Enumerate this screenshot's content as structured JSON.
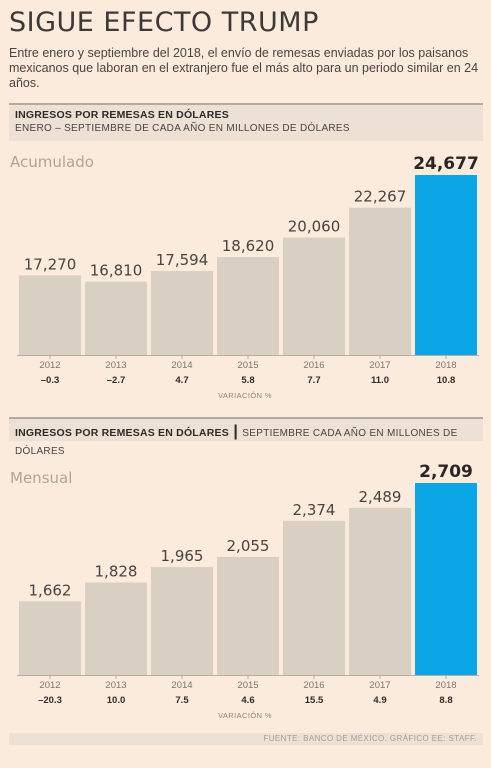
{
  "header": {
    "title": "SIGUE EFECTO TRUMP",
    "subtitle": "Entre enero y septiembre del 2018, el envío de remesas enviadas por los paisanos mexicanos que laboran en el extranjero fue el más alto para un periodo similar en 24 años."
  },
  "banner1": {
    "heading": "INGRESOS POR REMESAS EN DÓLARES",
    "subheading": "ENERO – SEPTIEMBRE DE CADA AÑO EN MILLONES DE DÓLARES"
  },
  "banner2": {
    "heading": "INGRESOS POR REMESAS EN DÓLARES",
    "separator": "|",
    "subheading": "SEPTIEMBRE CADA AÑO EN MILLONES DE DÓLARES"
  },
  "colors": {
    "bar": "#dacfc3",
    "highlight": "#0aa7e4",
    "background": "#faebdc"
  },
  "chart_data": [
    {
      "type": "bar",
      "label": "Acumulado",
      "categories": [
        "2012",
        "2013",
        "2014",
        "2015",
        "2016",
        "2017",
        "2018"
      ],
      "values": [
        17270,
        16810,
        17594,
        18620,
        20060,
        22267,
        24677
      ],
      "value_labels": [
        "17,270",
        "16,810",
        "17,594",
        "18,620",
        "20,060",
        "22,267",
        "24,677"
      ],
      "variation": [
        "–0.3",
        "–2.7",
        "4.7",
        "5.8",
        "7.7",
        "11.0",
        "10.8"
      ],
      "variation_label": "VARIACIÓN %",
      "highlight_index": 6,
      "ylim": [
        11400,
        24677
      ]
    },
    {
      "type": "bar",
      "label": "Mensual",
      "categories": [
        "2012",
        "2013",
        "2014",
        "2015",
        "2016",
        "2017",
        "2018"
      ],
      "values": [
        1662,
        1828,
        1965,
        2055,
        2374,
        2489,
        2709
      ],
      "value_labels": [
        "1,662",
        "1,828",
        "1,965",
        "2,055",
        "2,374",
        "2,489",
        "2,709"
      ],
      "variation": [
        "–20.3",
        "10.0",
        "7.5",
        "4.6",
        "15.5",
        "4.9",
        "8.8"
      ],
      "variation_label": "VARIACIÓN %",
      "highlight_index": 6,
      "ylim": [
        1010,
        2709
      ]
    }
  ],
  "footer": {
    "source": "FUENTE: BANCO DE MÉXICO. GRÁFICO EE: STAFF."
  }
}
